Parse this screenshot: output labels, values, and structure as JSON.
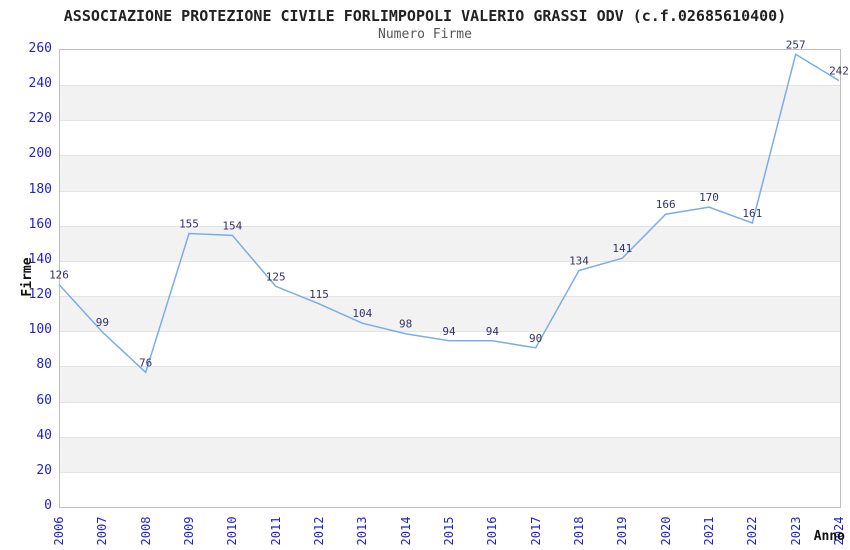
{
  "chart_data": {
    "type": "line",
    "title": "ASSOCIAZIONE PROTEZIONE CIVILE FORLIMPOPOLI VALERIO GRASSI ODV (c.f.02685610400)",
    "subtitle": "Numero Firme",
    "xlabel": "Anno",
    "ylabel": "Firme",
    "x": [
      "2006",
      "2007",
      "2008",
      "2009",
      "2010",
      "2011",
      "2012",
      "2013",
      "2014",
      "2015",
      "2016",
      "2017",
      "2018",
      "2019",
      "2020",
      "2021",
      "2022",
      "2023",
      "2024"
    ],
    "values": [
      126,
      99,
      76,
      155,
      154,
      125,
      115,
      104,
      98,
      94,
      94,
      90,
      134,
      141,
      166,
      170,
      161,
      257,
      242
    ],
    "ylim": [
      0,
      260
    ],
    "ytick_step": 20,
    "grid": "horizontal-bands",
    "legend": "none",
    "colors": {
      "line": "#7aade8",
      "data_label": "#333366",
      "tick_label": "#2222cc",
      "band_gray": "#f2f2f2",
      "gridline": "#e3e3e3",
      "plot_border": "#bfbfbf",
      "title": "#222222",
      "subtitle": "#555555",
      "axis_label": "#111111"
    }
  }
}
